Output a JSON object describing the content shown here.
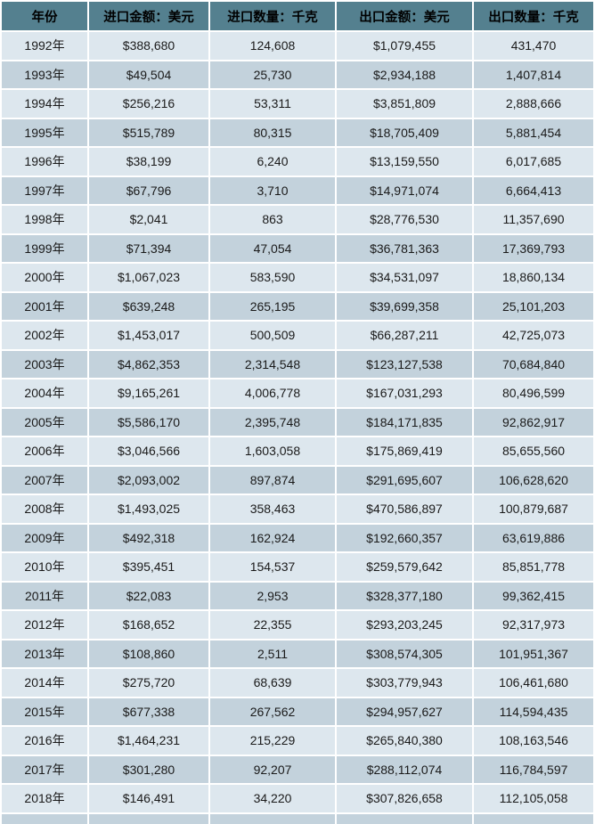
{
  "chart_data": {
    "type": "table",
    "columns": [
      "年份",
      "进口金额：美元",
      "进口数量：千克",
      "出口金额：美元",
      "出口数量：千克"
    ],
    "rows": [
      [
        "1992年",
        "$388,680",
        "124,608",
        "$1,079,455",
        "431,470"
      ],
      [
        "1993年",
        "$49,504",
        "25,730",
        "$2,934,188",
        "1,407,814"
      ],
      [
        "1994年",
        "$256,216",
        "53,311",
        "$3,851,809",
        "2,888,666"
      ],
      [
        "1995年",
        "$515,789",
        "80,315",
        "$18,705,409",
        "5,881,454"
      ],
      [
        "1996年",
        "$38,199",
        "6,240",
        "$13,159,550",
        "6,017,685"
      ],
      [
        "1997年",
        "$67,796",
        "3,710",
        "$14,971,074",
        "6,664,413"
      ],
      [
        "1998年",
        "$2,041",
        "863",
        "$28,776,530",
        "11,357,690"
      ],
      [
        "1999年",
        "$71,394",
        "47,054",
        "$36,781,363",
        "17,369,793"
      ],
      [
        "2000年",
        "$1,067,023",
        "583,590",
        "$34,531,097",
        "18,860,134"
      ],
      [
        "2001年",
        "$639,248",
        "265,195",
        "$39,699,358",
        "25,101,203"
      ],
      [
        "2002年",
        "$1,453,017",
        "500,509",
        "$66,287,211",
        "42,725,073"
      ],
      [
        "2003年",
        "$4,862,353",
        "2,314,548",
        "$123,127,538",
        "70,684,840"
      ],
      [
        "2004年",
        "$9,165,261",
        "4,006,778",
        "$167,031,293",
        "80,496,599"
      ],
      [
        "2005年",
        "$5,586,170",
        "2,395,748",
        "$184,171,835",
        "92,862,917"
      ],
      [
        "2006年",
        "$3,046,566",
        "1,603,058",
        "$175,869,419",
        "85,655,560"
      ],
      [
        "2007年",
        "$2,093,002",
        "897,874",
        "$291,695,607",
        "106,628,620"
      ],
      [
        "2008年",
        "$1,493,025",
        "358,463",
        "$470,586,897",
        "100,879,687"
      ],
      [
        "2009年",
        "$492,318",
        "162,924",
        "$192,660,357",
        "63,619,886"
      ],
      [
        "2010年",
        "$395,451",
        "154,537",
        "$259,579,642",
        "85,851,778"
      ],
      [
        "2011年",
        "$22,083",
        "2,953",
        "$328,377,180",
        "99,362,415"
      ],
      [
        "2012年",
        "$168,652",
        "22,355",
        "$293,203,245",
        "92,317,973"
      ],
      [
        "2013年",
        "$108,860",
        "2,511",
        "$308,574,305",
        "101,951,367"
      ],
      [
        "2014年",
        "$275,720",
        "68,639",
        "$303,779,943",
        "106,461,680"
      ],
      [
        "2015年",
        "$677,338",
        "267,562",
        "$294,957,627",
        "114,594,435"
      ],
      [
        "2016年",
        "$1,464,231",
        "215,229",
        "$265,840,380",
        "108,163,546"
      ],
      [
        "2017年",
        "$301,280",
        "92,207",
        "$288,112,074",
        "116,784,597"
      ],
      [
        "2018年",
        "$146,491",
        "34,220",
        "$307,826,658",
        "112,105,058"
      ]
    ],
    "layout": {
      "header_position": "top",
      "stripe_pattern": "alternating, first data row light",
      "grid": "white 2px gridlines"
    }
  },
  "colors": {
    "header_bg": "#54808f",
    "row_light": "#dde7ee",
    "row_dark": "#c3d2dc",
    "border": "#ffffff",
    "text": "#1a1a1a"
  }
}
